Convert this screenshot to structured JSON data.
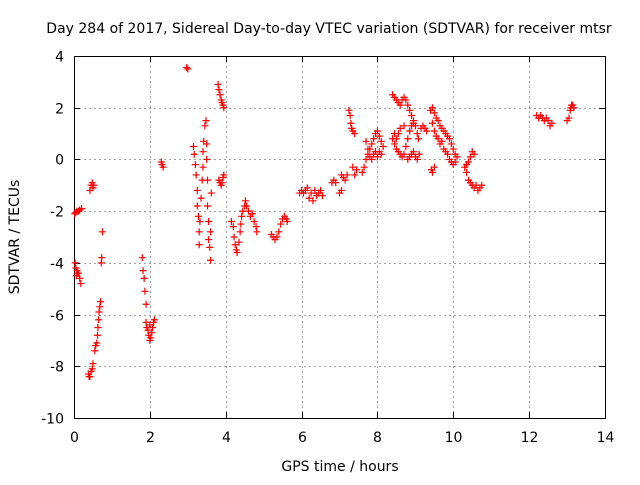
{
  "chart_data": {
    "type": "scatter",
    "title": "Day 284 of 2017, Sidereal Day-to-day VTEC variation (SDTVAR) for receiver mtsr",
    "xlabel": "GPS time / hours",
    "ylabel": "SDTVAR / TECUs",
    "xlim": [
      0,
      14
    ],
    "ylim": [
      -10,
      4
    ],
    "xticks": [
      0,
      2,
      4,
      6,
      8,
      10,
      12,
      14
    ],
    "yticks": [
      -10,
      -8,
      -6,
      -4,
      -2,
      0,
      2,
      4
    ],
    "xtick_labels": [
      "0",
      "2",
      "4",
      "6",
      "8",
      "10",
      "12",
      "14"
    ],
    "ytick_labels": [
      "-10",
      "-8",
      "-6",
      "-4",
      "-2",
      "0",
      "2",
      "4"
    ],
    "grid": true,
    "marker": "+",
    "color": "#ff0000",
    "series": [
      {
        "name": "mtsr",
        "points": [
          [
            0.02,
            -2.1
          ],
          [
            0.05,
            -2.05
          ],
          [
            0.08,
            -2.0
          ],
          [
            0.12,
            -2.0
          ],
          [
            0.15,
            -1.95
          ],
          [
            0.2,
            -1.9
          ],
          [
            0.03,
            -4.0
          ],
          [
            0.05,
            -4.2
          ],
          [
            0.08,
            -4.3
          ],
          [
            0.1,
            -4.4
          ],
          [
            0.12,
            -4.4
          ],
          [
            0.15,
            -4.6
          ],
          [
            0.18,
            -4.8
          ],
          [
            0.06,
            -4.5
          ],
          [
            0.38,
            -8.3
          ],
          [
            0.4,
            -8.4
          ],
          [
            0.42,
            -8.4
          ],
          [
            0.45,
            -8.2
          ],
          [
            0.48,
            -8.1
          ],
          [
            0.5,
            -7.9
          ],
          [
            0.42,
            -1.2
          ],
          [
            0.45,
            -1.0
          ],
          [
            0.48,
            -0.9
          ],
          [
            0.5,
            -1.1
          ],
          [
            0.52,
            -1.0
          ],
          [
            0.55,
            -7.4
          ],
          [
            0.57,
            -7.2
          ],
          [
            0.6,
            -7.1
          ],
          [
            0.62,
            -6.8
          ],
          [
            0.63,
            -6.5
          ],
          [
            0.65,
            -6.2
          ],
          [
            0.66,
            -5.9
          ],
          [
            0.68,
            -5.7
          ],
          [
            0.7,
            -5.5
          ],
          [
            0.72,
            -4.0
          ],
          [
            0.73,
            -3.8
          ],
          [
            0.75,
            -2.8
          ],
          [
            1.8,
            -3.8
          ],
          [
            1.82,
            -4.3
          ],
          [
            1.85,
            -4.6
          ],
          [
            1.87,
            -5.1
          ],
          [
            1.9,
            -5.6
          ],
          [
            1.9,
            -6.3
          ],
          [
            1.92,
            -6.5
          ],
          [
            1.95,
            -6.6
          ],
          [
            1.97,
            -6.8
          ],
          [
            2.0,
            -7.0
          ],
          [
            2.02,
            -6.9
          ],
          [
            2.05,
            -6.7
          ],
          [
            2.07,
            -6.5
          ],
          [
            2.1,
            -6.3
          ],
          [
            2.12,
            -6.2
          ],
          [
            2.0,
            -6.4
          ],
          [
            2.3,
            -0.1
          ],
          [
            2.32,
            -0.2
          ],
          [
            2.35,
            -0.3
          ],
          [
            2.97,
            3.55
          ],
          [
            3.0,
            3.5
          ],
          [
            3.15,
            0.5
          ],
          [
            3.17,
            0.2
          ],
          [
            3.2,
            -0.2
          ],
          [
            3.22,
            -0.6
          ],
          [
            3.25,
            -1.2
          ],
          [
            3.25,
            -1.8
          ],
          [
            3.28,
            -2.2
          ],
          [
            3.3,
            -2.8
          ],
          [
            3.3,
            -3.3
          ],
          [
            3.32,
            -2.4
          ],
          [
            3.35,
            -1.5
          ],
          [
            3.38,
            -0.8
          ],
          [
            3.4,
            -0.3
          ],
          [
            3.4,
            0.3
          ],
          [
            3.42,
            0.7
          ],
          [
            3.45,
            1.3
          ],
          [
            3.48,
            1.5
          ],
          [
            3.5,
            0.6
          ],
          [
            3.5,
            0.0
          ],
          [
            3.52,
            -0.8
          ],
          [
            3.52,
            -1.8
          ],
          [
            3.55,
            -2.4
          ],
          [
            3.55,
            -3.1
          ],
          [
            3.58,
            -3.4
          ],
          [
            3.6,
            -3.9
          ],
          [
            3.6,
            -2.8
          ],
          [
            3.62,
            -1.3
          ],
          [
            3.8,
            2.9
          ],
          [
            3.82,
            2.7
          ],
          [
            3.85,
            2.5
          ],
          [
            3.88,
            2.3
          ],
          [
            3.9,
            2.2
          ],
          [
            3.93,
            2.1
          ],
          [
            3.95,
            2.0
          ],
          [
            3.82,
            -0.8
          ],
          [
            3.85,
            -0.9
          ],
          [
            3.88,
            -1.0
          ],
          [
            3.9,
            -0.9
          ],
          [
            3.93,
            -0.7
          ],
          [
            3.95,
            -0.6
          ],
          [
            4.15,
            -2.4
          ],
          [
            4.2,
            -2.6
          ],
          [
            4.22,
            -3.0
          ],
          [
            4.25,
            -3.3
          ],
          [
            4.28,
            -3.5
          ],
          [
            4.3,
            -3.6
          ],
          [
            4.35,
            -3.2
          ],
          [
            4.38,
            -2.8
          ],
          [
            4.4,
            -2.5
          ],
          [
            4.42,
            -2.2
          ],
          [
            4.45,
            -2.0
          ],
          [
            4.5,
            -1.8
          ],
          [
            4.52,
            -1.6
          ],
          [
            4.55,
            -1.8
          ],
          [
            4.6,
            -2.0
          ],
          [
            4.65,
            -2.2
          ],
          [
            4.7,
            -2.1
          ],
          [
            4.75,
            -2.4
          ],
          [
            4.8,
            -2.6
          ],
          [
            4.82,
            -2.8
          ],
          [
            5.2,
            -2.9
          ],
          [
            5.25,
            -3.0
          ],
          [
            5.3,
            -3.1
          ],
          [
            5.35,
            -3.0
          ],
          [
            5.4,
            -2.8
          ],
          [
            5.45,
            -2.5
          ],
          [
            5.5,
            -2.3
          ],
          [
            5.55,
            -2.2
          ],
          [
            5.6,
            -2.3
          ],
          [
            5.62,
            -2.4
          ],
          [
            5.95,
            -1.3
          ],
          [
            6.0,
            -1.2
          ],
          [
            6.05,
            -1.3
          ],
          [
            6.1,
            -1.2
          ],
          [
            6.15,
            -1.1
          ],
          [
            6.2,
            -1.5
          ],
          [
            6.25,
            -1.3
          ],
          [
            6.3,
            -1.6
          ],
          [
            6.35,
            -1.2
          ],
          [
            6.4,
            -1.4
          ],
          [
            6.45,
            -1.3
          ],
          [
            6.5,
            -1.2
          ],
          [
            6.55,
            -1.4
          ],
          [
            6.8,
            -0.9
          ],
          [
            6.85,
            -0.8
          ],
          [
            6.9,
            -0.9
          ],
          [
            7.05,
            -0.6
          ],
          [
            7.1,
            -0.7
          ],
          [
            7.15,
            -0.8
          ],
          [
            7.2,
            -0.6
          ],
          [
            7.0,
            -1.3
          ],
          [
            7.05,
            -1.2
          ],
          [
            7.25,
            1.9
          ],
          [
            7.28,
            1.7
          ],
          [
            7.3,
            1.4
          ],
          [
            7.32,
            1.2
          ],
          [
            7.35,
            1.1
          ],
          [
            7.4,
            1.0
          ],
          [
            7.35,
            -0.3
          ],
          [
            7.4,
            -0.6
          ],
          [
            7.45,
            -0.4
          ],
          [
            7.6,
            -0.5
          ],
          [
            7.65,
            -0.3
          ],
          [
            7.7,
            0.0
          ],
          [
            7.75,
            0.2
          ],
          [
            7.8,
            0.4
          ],
          [
            7.85,
            0.6
          ],
          [
            7.9,
            0.8
          ],
          [
            7.95,
            1.0
          ],
          [
            8.0,
            1.1
          ],
          [
            8.05,
            0.9
          ],
          [
            8.1,
            0.7
          ],
          [
            8.15,
            0.5
          ],
          [
            8.1,
            0.2
          ],
          [
            8.05,
            0.3
          ],
          [
            8.0,
            0.1
          ],
          [
            7.95,
            0.3
          ],
          [
            7.9,
            0.2
          ],
          [
            7.85,
            0.0
          ],
          [
            7.8,
            0.1
          ],
          [
            7.75,
            0.4
          ],
          [
            7.7,
            0.7
          ],
          [
            8.4,
            2.5
          ],
          [
            8.45,
            2.4
          ],
          [
            8.5,
            2.3
          ],
          [
            8.55,
            2.2
          ],
          [
            8.6,
            2.1
          ],
          [
            8.65,
            2.3
          ],
          [
            8.7,
            2.4
          ],
          [
            8.75,
            2.3
          ],
          [
            8.8,
            2.1
          ],
          [
            8.85,
            1.9
          ],
          [
            8.9,
            1.7
          ],
          [
            8.95,
            1.5
          ],
          [
            9.0,
            1.3
          ],
          [
            9.05,
            1.0
          ],
          [
            9.08,
            0.8
          ],
          [
            8.45,
            0.6
          ],
          [
            8.5,
            0.4
          ],
          [
            8.55,
            0.3
          ],
          [
            8.6,
            0.2
          ],
          [
            8.65,
            0.1
          ],
          [
            8.7,
            0.2
          ],
          [
            8.75,
            0.5
          ],
          [
            8.8,
            0.8
          ],
          [
            8.85,
            1.1
          ],
          [
            8.9,
            1.3
          ],
          [
            8.95,
            1.4
          ],
          [
            8.7,
            1.3
          ],
          [
            8.6,
            1.2
          ],
          [
            8.55,
            1.0
          ],
          [
            8.5,
            0.8
          ],
          [
            8.45,
            1.0
          ],
          [
            8.4,
            0.8
          ],
          [
            8.8,
            0.0
          ],
          [
            8.85,
            0.1
          ],
          [
            8.9,
            0.2
          ],
          [
            8.95,
            0.3
          ],
          [
            9.0,
            0.1
          ],
          [
            9.05,
            0.0
          ],
          [
            9.1,
            0.2
          ],
          [
            9.15,
            1.2
          ],
          [
            9.2,
            1.3
          ],
          [
            9.25,
            1.2
          ],
          [
            9.3,
            1.1
          ],
          [
            9.4,
            1.9
          ],
          [
            9.45,
            2.0
          ],
          [
            9.5,
            1.8
          ],
          [
            9.55,
            1.6
          ],
          [
            9.6,
            1.5
          ],
          [
            9.65,
            1.3
          ],
          [
            9.7,
            1.2
          ],
          [
            9.75,
            1.1
          ],
          [
            9.8,
            1.0
          ],
          [
            9.85,
            0.9
          ],
          [
            9.9,
            0.8
          ],
          [
            9.95,
            0.6
          ],
          [
            10.0,
            0.4
          ],
          [
            10.05,
            0.2
          ],
          [
            10.1,
            0.1
          ],
          [
            9.45,
            1.4
          ],
          [
            9.5,
            1.1
          ],
          [
            9.55,
            0.9
          ],
          [
            9.6,
            0.8
          ],
          [
            9.65,
            0.6
          ],
          [
            9.7,
            0.7
          ],
          [
            9.75,
            0.4
          ],
          [
            9.8,
            0.3
          ],
          [
            9.85,
            0.2
          ],
          [
            9.9,
            0.0
          ],
          [
            9.95,
            -0.1
          ],
          [
            10.0,
            -0.2
          ],
          [
            10.05,
            -0.1
          ],
          [
            9.42,
            -0.4
          ],
          [
            9.45,
            -0.5
          ],
          [
            9.5,
            -0.3
          ],
          [
            10.3,
            -0.3
          ],
          [
            10.35,
            -0.5
          ],
          [
            10.4,
            -0.8
          ],
          [
            10.45,
            -0.9
          ],
          [
            10.5,
            -1.0
          ],
          [
            10.55,
            -1.1
          ],
          [
            10.6,
            -1.0
          ],
          [
            10.65,
            -1.2
          ],
          [
            10.7,
            -1.1
          ],
          [
            10.75,
            -1.0
          ],
          [
            10.35,
            -0.2
          ],
          [
            10.4,
            -0.1
          ],
          [
            10.45,
            0.1
          ],
          [
            10.5,
            0.3
          ],
          [
            10.55,
            0.2
          ],
          [
            12.2,
            1.7
          ],
          [
            12.25,
            1.6
          ],
          [
            12.3,
            1.7
          ],
          [
            12.35,
            1.6
          ],
          [
            12.4,
            1.5
          ],
          [
            12.45,
            1.6
          ],
          [
            12.5,
            1.5
          ],
          [
            12.55,
            1.3
          ],
          [
            12.6,
            1.4
          ],
          [
            13.0,
            1.5
          ],
          [
            13.05,
            1.6
          ],
          [
            13.08,
            1.9
          ],
          [
            13.1,
            2.0
          ],
          [
            13.12,
            2.1
          ],
          [
            13.15,
            2.1
          ],
          [
            13.18,
            2.0
          ]
        ]
      }
    ]
  }
}
